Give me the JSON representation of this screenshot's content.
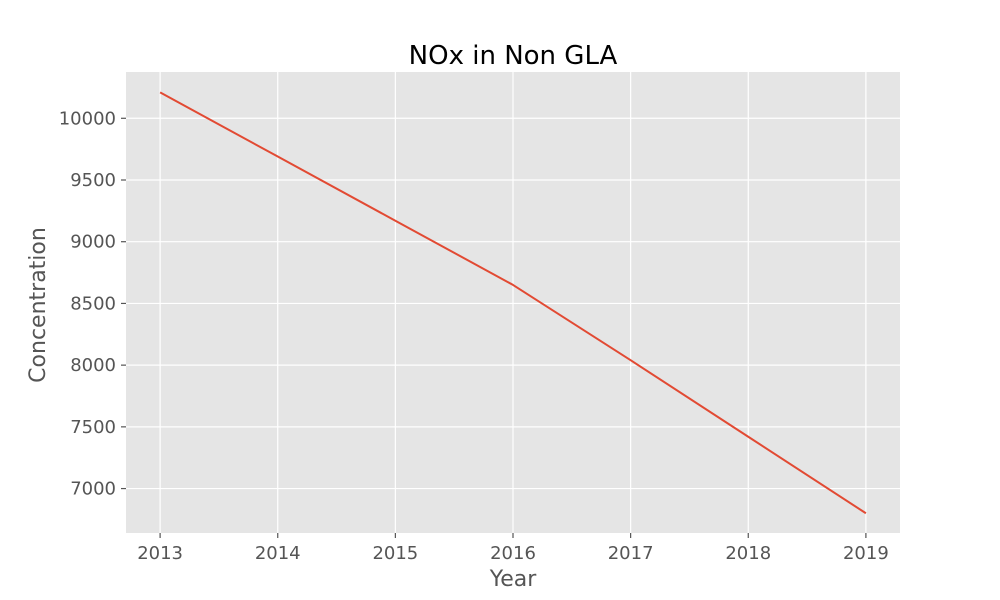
{
  "chart_data": {
    "type": "line",
    "title": "NOx in Non GLA",
    "xlabel": "Year",
    "ylabel": "Concentration",
    "x": [
      2013,
      2014,
      2015,
      2016,
      2017,
      2018,
      2019
    ],
    "series": [
      {
        "values": [
          10210,
          9690,
          9170,
          8650,
          8040,
          7420,
          6800
        ]
      }
    ],
    "xlim": [
      2012.71,
      2019.29
    ],
    "ylim": [
      6640,
      10375
    ],
    "xticks": [
      "2013",
      "2014",
      "2015",
      "2016",
      "2017",
      "2018",
      "2019"
    ],
    "yticks": [
      "7000",
      "7500",
      "8000",
      "8500",
      "9000",
      "9500",
      "10000"
    ],
    "grid": true,
    "legend": "none",
    "colors": {
      "line": "#e24a33",
      "plot_background": "#e5e5e5",
      "grid": "#ffffff"
    }
  }
}
